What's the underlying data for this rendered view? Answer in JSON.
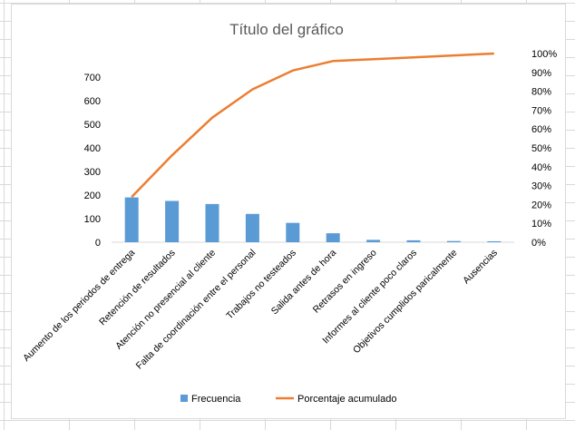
{
  "chart_data": {
    "type": "bar+line",
    "title": "Título del gráfico",
    "categories": [
      "Aumento de los periodos de entrega",
      "Retención de resultados",
      "Atención no presencial al cliente",
      "Falta de coordinación entre el personal",
      "Trabajos no testeados",
      "Salida antes de hora",
      "Retrasos en ingreso",
      "Informes al cliente poco claros",
      "Objetivos cumplidos paricalmente",
      "Ausencias"
    ],
    "series": [
      {
        "name": "Frecuencia",
        "type": "bar",
        "axis": "left",
        "color": "#5b9bd5",
        "values": [
          190,
          175,
          162,
          120,
          82,
          38,
          10,
          8,
          5,
          4
        ]
      },
      {
        "name": "Porcentaje acumulado",
        "type": "line",
        "axis": "right",
        "color": "#ed7d31",
        "values": [
          24,
          46,
          66,
          81,
          91,
          96,
          97,
          98,
          99,
          100
        ]
      }
    ],
    "y_left": {
      "min": 0,
      "max": 800,
      "ticks": [
        0,
        100,
        200,
        300,
        400,
        500,
        600,
        700
      ]
    },
    "y_right": {
      "min": 0,
      "max": 100,
      "ticks": [
        0,
        10,
        20,
        30,
        40,
        50,
        60,
        70,
        80,
        90,
        100
      ],
      "tick_labels": [
        "0%",
        "10%",
        "20%",
        "30%",
        "40%",
        "50%",
        "60%",
        "70%",
        "80%",
        "90%",
        "100%"
      ]
    },
    "grid": false,
    "legend_position": "bottom"
  }
}
